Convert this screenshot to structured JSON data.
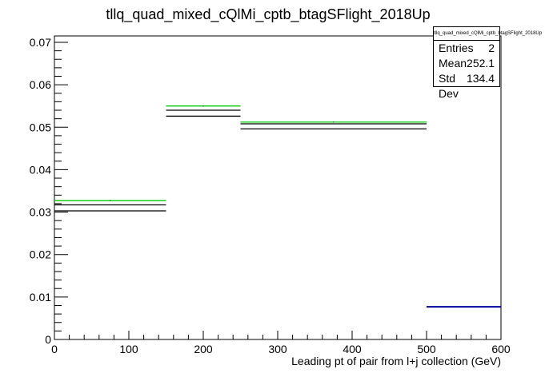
{
  "chart_data": {
    "type": "histogram",
    "title": "tllq_quad_mixed_cQlMi_cptb_btagSFlight_2018Up",
    "xlabel": "Leading pt of pair from l+j collection (GeV)",
    "ylabel": "",
    "xlim": [
      0,
      600
    ],
    "ylim": [
      0,
      0.0715
    ],
    "x_ticks": [
      0,
      100,
      200,
      300,
      400,
      500,
      600
    ],
    "y_ticks": [
      0,
      0.01,
      0.02,
      0.03,
      0.04,
      0.05,
      0.06,
      0.07
    ],
    "x_tick_labels": [
      "0",
      "100",
      "200",
      "300",
      "400",
      "500",
      "600"
    ],
    "y_tick_labels": [
      "0",
      "0.01",
      "0.02",
      "0.03",
      "0.04",
      "0.05",
      "0.06",
      "0.07"
    ],
    "bins": [
      {
        "x_low": 0,
        "x_high": 150,
        "nominal": 0.031,
        "up": 0.0327,
        "band": [
          0.0303,
          0.0317
        ]
      },
      {
        "x_low": 150,
        "x_high": 250,
        "nominal": 0.0534,
        "up": 0.055,
        "band": [
          0.0526,
          0.054
        ]
      },
      {
        "x_low": 250,
        "x_high": 500,
        "nominal": 0.0502,
        "up": 0.0512,
        "band": [
          0.0496,
          0.0508
        ]
      },
      {
        "x_low": 500,
        "x_high": 600,
        "nominal": 0.0077,
        "up": 0.0077,
        "band": [
          0.0077,
          0.0077
        ]
      }
    ],
    "series_colors": {
      "nominal": "#000000",
      "up": "#00cc00",
      "last_bin": "#000099"
    },
    "grid": false
  },
  "stats_box": {
    "title": "tllq_quad_mixed_cQlMi_cptb_btagSFlight_2018Up",
    "entries_label": "Entries",
    "entries_value": "2",
    "mean_label": "Mean",
    "mean_value": "252.1",
    "std_label": "Std Dev",
    "std_value": "134.4"
  }
}
